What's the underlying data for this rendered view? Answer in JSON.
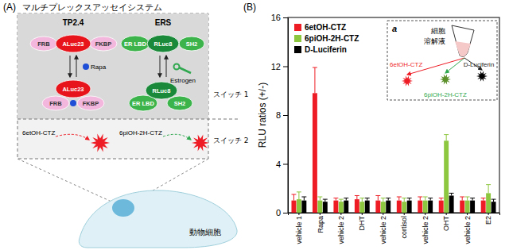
{
  "diagram": {
    "label": "(A)",
    "title": "マルチプレックスアッセイシステム",
    "sensors": [
      {
        "name": "TP2.4",
        "domains": [
          "FRB",
          "ALuc23",
          "FKBP"
        ],
        "ligand": "Rapa",
        "substrate": "6etOH-CTZ"
      },
      {
        "name": "ERS",
        "domains": [
          "ER LBD",
          "RLuc8",
          "SH2"
        ],
        "ligand": "Estrogen",
        "substrate": "6piOH-2H-CTZ"
      }
    ],
    "switches": [
      "スイッチ 1",
      "スイッチ 2"
    ],
    "cell": "動物細胞"
  },
  "inset": {
    "label": "a",
    "sample": [
      "細胞",
      "溶解液"
    ]
  },
  "chart_data": {
    "type": "bar",
    "title": "(B)",
    "ylabel": "RLU ratios (+/-)",
    "categories": [
      "vehicle 1",
      "Rapa",
      "vehicle 2",
      "DHT",
      "vehicle 2",
      "cortisol",
      "vehicle 2",
      "OHT",
      "vehicle 2",
      "E2"
    ],
    "series": [
      {
        "name": "6etOH-CTZ",
        "color": "#ee1c25",
        "values": [
          1.0,
          9.8,
          1.0,
          1.1,
          1.0,
          1.0,
          1.0,
          1.0,
          1.0,
          1.0
        ],
        "errors": [
          0.5,
          2.1,
          0.2,
          0.3,
          0.4,
          0.3,
          0.3,
          0.2,
          0.3,
          0.2
        ]
      },
      {
        "name": "6piOH-2H-CTZ",
        "color": "#8dc63f",
        "values": [
          1.1,
          1.0,
          0.9,
          0.9,
          0.9,
          0.9,
          1.0,
          5.9,
          1.0,
          1.6
        ],
        "errors": [
          0.6,
          0.3,
          0.2,
          0.3,
          0.3,
          0.3,
          0.3,
          0.5,
          0.3,
          0.7
        ]
      },
      {
        "name": "D-Luciferin",
        "color": "#000000",
        "values": [
          1.0,
          0.9,
          1.0,
          1.0,
          1.0,
          1.0,
          1.0,
          1.4,
          1.0,
          0.9
        ],
        "errors": [
          0.3,
          0.2,
          0.2,
          0.2,
          0.2,
          0.2,
          0.2,
          0.2,
          0.2,
          0.2
        ]
      }
    ],
    "ylim": [
      0,
      16
    ],
    "yticks": [
      0,
      4,
      8,
      12,
      16
    ],
    "legend": "upper left"
  }
}
